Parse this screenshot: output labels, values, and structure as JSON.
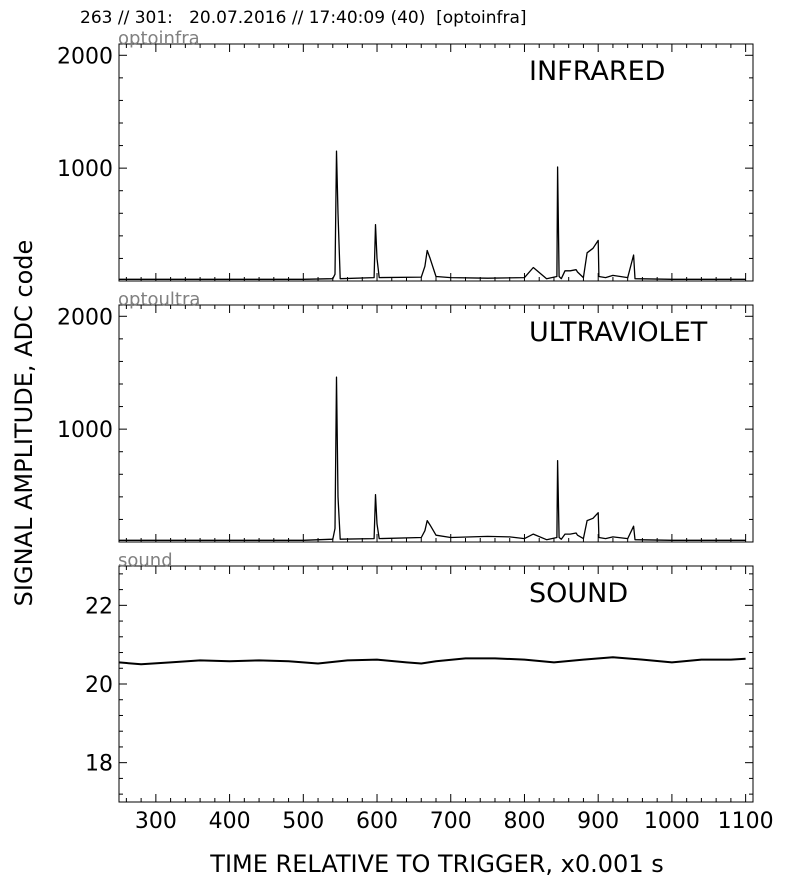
{
  "header": {
    "text": "263 // 301:   20.07.2016 // 17:40:09 (40)  [optoinfra]"
  },
  "figure": {
    "ylabel": "SIGNAL AMPLITUDE,  ADC code",
    "xlabel": "TIME RELATIVE TO TRIGGER,   x0.001 s",
    "x_ticks": [
      300,
      400,
      500,
      600,
      700,
      800,
      900,
      1000,
      1100
    ]
  },
  "chart_data": [
    {
      "type": "line",
      "source_label": "optoinfra",
      "title": "INFRARED",
      "xlim": [
        250,
        1110
      ],
      "ylim": [
        0,
        2100
      ],
      "yticks": [
        1000,
        2000
      ],
      "x": [
        250,
        300,
        400,
        500,
        540,
        543,
        545,
        547,
        550,
        596,
        598,
        600,
        603,
        660,
        665,
        668,
        672,
        680,
        700,
        750,
        800,
        812,
        830,
        844,
        845,
        847,
        850,
        855,
        862,
        870,
        872,
        880,
        885,
        893,
        900,
        901,
        910,
        920,
        940,
        948,
        950,
        1000,
        1050,
        1100
      ],
      "values": [
        15,
        15,
        15,
        15,
        20,
        60,
        1150,
        600,
        20,
        30,
        500,
        200,
        30,
        35,
        130,
        270,
        200,
        40,
        30,
        25,
        30,
        120,
        20,
        40,
        1010,
        40,
        20,
        90,
        90,
        100,
        80,
        30,
        250,
        290,
        360,
        40,
        30,
        50,
        30,
        230,
        20,
        15,
        15,
        15
      ]
    },
    {
      "type": "line",
      "source_label": "optoultra",
      "title": "ULTRAVIOLET",
      "xlim": [
        250,
        1110
      ],
      "ylim": [
        0,
        2100
      ],
      "yticks": [
        1000,
        2000
      ],
      "x": [
        250,
        300,
        400,
        500,
        540,
        543,
        545,
        547,
        550,
        596,
        598,
        600,
        603,
        660,
        665,
        668,
        672,
        680,
        700,
        750,
        780,
        800,
        812,
        830,
        844,
        845,
        847,
        850,
        855,
        862,
        870,
        872,
        880,
        885,
        893,
        900,
        901,
        910,
        920,
        940,
        948,
        950,
        1000,
        1050,
        1100
      ],
      "values": [
        15,
        15,
        15,
        15,
        25,
        120,
        1460,
        400,
        25,
        30,
        420,
        160,
        30,
        40,
        100,
        190,
        150,
        60,
        40,
        50,
        45,
        30,
        70,
        20,
        40,
        720,
        40,
        25,
        70,
        70,
        80,
        60,
        30,
        190,
        210,
        260,
        40,
        30,
        45,
        30,
        140,
        20,
        15,
        15,
        15
      ]
    },
    {
      "type": "line",
      "source_label": "sound",
      "title": "SOUND",
      "xlim": [
        250,
        1110
      ],
      "ylim": [
        17,
        23
      ],
      "yticks": [
        18,
        20,
        22
      ],
      "x": [
        250,
        280,
        320,
        360,
        400,
        440,
        480,
        520,
        560,
        600,
        640,
        660,
        680,
        720,
        760,
        800,
        840,
        880,
        920,
        960,
        1000,
        1040,
        1080,
        1100
      ],
      "values": [
        20.55,
        20.5,
        20.55,
        20.6,
        20.58,
        20.6,
        20.58,
        20.52,
        20.6,
        20.62,
        20.55,
        20.52,
        20.58,
        20.65,
        20.65,
        20.62,
        20.55,
        20.62,
        20.68,
        20.62,
        20.55,
        20.62,
        20.62,
        20.64
      ]
    }
  ]
}
